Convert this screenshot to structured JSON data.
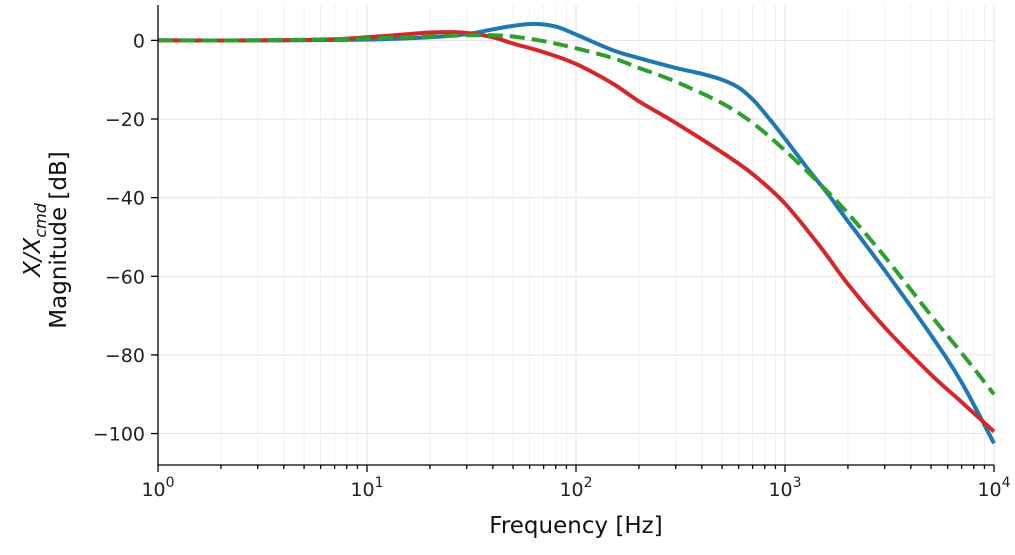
{
  "chart_data": {
    "type": "line",
    "xlabel": "Frequency [Hz]",
    "ylabel_line1": "X/X",
    "ylabel_subscript": "cmd",
    "ylabel_line2": "Magnitude [dB]",
    "xscale": "log",
    "xlim": [
      1,
      10000
    ],
    "ylim": [
      -108,
      9
    ],
    "grid": true,
    "x_ticks": [
      {
        "value": 1,
        "base": "10",
        "exp": "0"
      },
      {
        "value": 10,
        "base": "10",
        "exp": "1"
      },
      {
        "value": 100,
        "base": "10",
        "exp": "2"
      },
      {
        "value": 1000,
        "base": "10",
        "exp": "3"
      },
      {
        "value": 10000,
        "base": "10",
        "exp": "4"
      }
    ],
    "y_ticks": [
      {
        "value": 0,
        "label": "0"
      },
      {
        "value": -20,
        "label": "−20"
      },
      {
        "value": -40,
        "label": "−40"
      },
      {
        "value": -60,
        "label": "−60"
      },
      {
        "value": -80,
        "label": "−80"
      },
      {
        "value": -100,
        "label": "−100"
      }
    ],
    "series": [
      {
        "color": "#1f77b4",
        "style": "solid",
        "x": [
          1,
          3,
          10,
          20,
          30,
          40,
          50,
          63,
          80,
          100,
          150,
          200,
          300,
          400,
          500,
          600,
          700,
          800,
          1000,
          1300,
          1600,
          2000,
          3000,
          5000,
          7000,
          10000
        ],
        "y": [
          0,
          0,
          0.2,
          0.8,
          1.6,
          2.8,
          3.7,
          4.2,
          3.5,
          1.5,
          -2.5,
          -4.5,
          -7.0,
          -8.5,
          -10.0,
          -12.0,
          -15.0,
          -18.5,
          -25.0,
          -33.0,
          -39.0,
          -46.0,
          -58.5,
          -75.0,
          -87.0,
          -102.5
        ]
      },
      {
        "color": "#d62728",
        "style": "solid",
        "x": [
          1,
          3,
          7,
          10,
          15,
          20,
          25,
          30,
          40,
          50,
          70,
          100,
          150,
          200,
          300,
          500,
          700,
          1000,
          1500,
          2000,
          3000,
          5000,
          7000,
          10000
        ],
        "y": [
          0,
          0,
          0.3,
          0.8,
          1.5,
          2.0,
          2.1,
          1.9,
          0.8,
          -0.8,
          -3.0,
          -6.0,
          -11.0,
          -15.5,
          -21.0,
          -28.5,
          -34.0,
          -41.5,
          -53.0,
          -62.0,
          -73.0,
          -85.0,
          -92.0,
          -99.5
        ]
      },
      {
        "color": "#2ca02c",
        "style": "dashed",
        "x": [
          1,
          3,
          10,
          20,
          30,
          40,
          50,
          70,
          100,
          150,
          200,
          300,
          500,
          700,
          1000,
          1500,
          2000,
          3000,
          5000,
          7000,
          10000
        ],
        "y": [
          0,
          0,
          0.5,
          1.0,
          1.3,
          1.3,
          1.0,
          -0.2,
          -2.0,
          -4.5,
          -7.0,
          -10.5,
          -16.0,
          -21.0,
          -28.0,
          -37.0,
          -44.0,
          -55.0,
          -70.0,
          -79.5,
          -90.0
        ]
      }
    ]
  }
}
